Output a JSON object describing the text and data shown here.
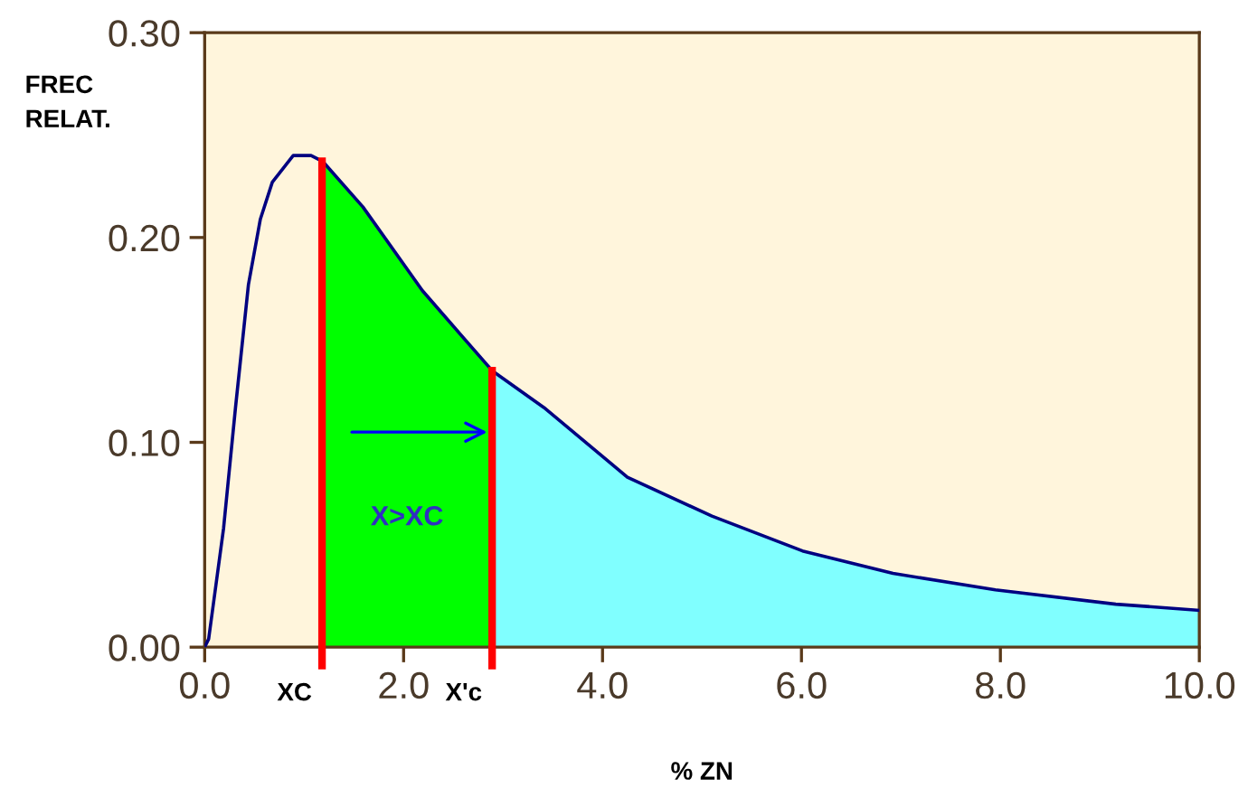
{
  "chart_data": {
    "type": "line",
    "xlabel": "% ZN",
    "ylabel": "FREC\nRELAT.",
    "series": [
      {
        "type": "area",
        "color": "#00ff00",
        "x": [
          1.18,
          1.59,
          2.19,
          2.89
        ],
        "values": [
          0.237,
          0.215,
          0.174,
          0.135
        ]
      },
      {
        "type": "area",
        "color": "#80ffff",
        "x": [
          2.89,
          3.41,
          4.25,
          5.1,
          6.01,
          6.92,
          7.95,
          9.16,
          10.0
        ],
        "values": [
          0.135,
          0.117,
          0.083,
          0.064,
          0.047,
          0.036,
          0.028,
          0.021,
          0.018
        ]
      },
      {
        "color": "#000080",
        "x": [
          0.0,
          0.04,
          0.19,
          0.31,
          0.44,
          0.56,
          0.68,
          0.89,
          1.07,
          1.19,
          1.59,
          2.19,
          2.89,
          3.41,
          4.25,
          5.1,
          6.01,
          6.92,
          7.95,
          9.16,
          10.0
        ],
        "values": [
          0.0,
          0.004,
          0.058,
          0.117,
          0.177,
          0.209,
          0.227,
          0.24,
          0.24,
          0.237,
          0.215,
          0.174,
          0.135,
          0.117,
          0.083,
          0.064,
          0.047,
          0.036,
          0.028,
          0.021,
          0.018
        ]
      }
    ],
    "xlim": [
      0,
      10
    ],
    "ylim": [
      0,
      0.3
    ],
    "xticks": [
      {
        "value": 0,
        "label": "0.0"
      },
      {
        "value": 2,
        "label": "2.0"
      },
      {
        "value": 4,
        "label": "4.0"
      },
      {
        "value": 6,
        "label": "6.0"
      },
      {
        "value": 8,
        "label": "8.0"
      },
      {
        "value": 10,
        "label": "10.0"
      }
    ],
    "yticks": [
      {
        "value": 0,
        "label": "0.00"
      },
      {
        "value": 0.1,
        "label": "0.10"
      },
      {
        "value": 0.2,
        "label": "0.20"
      },
      {
        "value": 0.3,
        "label": "0.30"
      }
    ],
    "ref_lines": [
      {
        "axis": "x",
        "value": 1.18,
        "label": "XC",
        "color": "#ff0000"
      },
      {
        "axis": "x",
        "value": 2.89,
        "label": "X'c",
        "color": "#ff0000"
      }
    ],
    "annotations": [
      "X>XC"
    ],
    "grid": false,
    "marker": "none",
    "line_style": "solid"
  }
}
